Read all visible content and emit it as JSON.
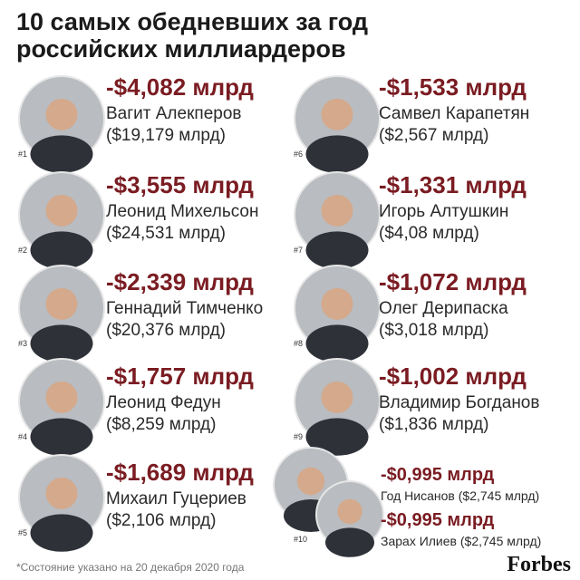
{
  "title": [
    "10 самых обедневших за год",
    "российских миллиардеров"
  ],
  "entries": [
    {
      "rank": "#1",
      "change": "-$4,082 млрд",
      "name": "Вагит Алекперов",
      "wealth": "($19,179 млрд)"
    },
    {
      "rank": "#2",
      "change": "-$3,555 млрд",
      "name": "Леонид Михельсон",
      "wealth": "($24,531 млрд)"
    },
    {
      "rank": "#3",
      "change": "-$2,339 млрд",
      "name": "Геннадий Тимченко",
      "wealth": "($20,376 млрд)"
    },
    {
      "rank": "#4",
      "change": "-$1,757 млрд",
      "name": "Леонид Федун",
      "wealth": "($8,259 млрд)"
    },
    {
      "rank": "#5",
      "change": "-$1,689 млрд",
      "name": "Михаил Гуцериев",
      "wealth": "($2,106 млрд)"
    },
    {
      "rank": "#6",
      "change": "-$1,533 млрд",
      "name": "Самвел Карапетян",
      "wealth": "($2,567 млрд)"
    },
    {
      "rank": "#7",
      "change": "-$1,331 млрд",
      "name": "Игорь Алтушкин",
      "wealth": "($4,08 млрд)"
    },
    {
      "rank": "#8",
      "change": "-$1,072 млрд",
      "name": "Олег Дерипаска",
      "wealth": "($3,018 млрд)"
    },
    {
      "rank": "#9",
      "change": "-$1,002 млрд",
      "name": "Владимир Богданов",
      "wealth": "($1,836 млрд)"
    }
  ],
  "entry_10": {
    "rank": "#10",
    "people": [
      {
        "change": "-$0,995 млрд",
        "name_wealth": "Год Нисанов ($2,745 млрд)"
      },
      {
        "change": "-$0,995 млрд",
        "name_wealth": "Зарах Илиев ($2,745 млрд)"
      }
    ]
  },
  "footnote": "*Состояние указано на 20 декабря 2020 года",
  "logo": "Forbes"
}
